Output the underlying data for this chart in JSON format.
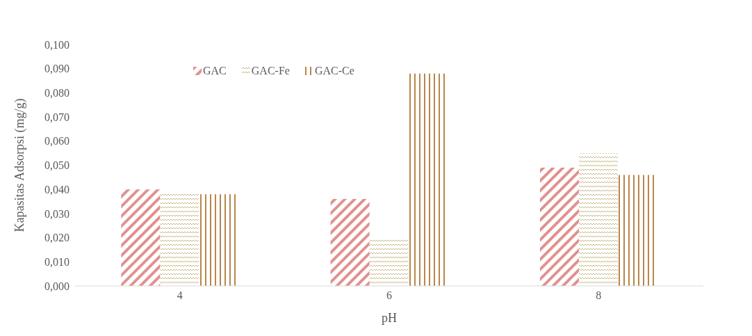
{
  "chart_data": {
    "type": "bar",
    "xlabel": "pH",
    "ylabel": "Kapasitas Adsorpsi (mg/g)",
    "categories": [
      "4",
      "6",
      "8"
    ],
    "series": [
      {
        "name": "GAC",
        "color": "#e0918f",
        "values": [
          0.04,
          0.036,
          0.049
        ]
      },
      {
        "name": "GAC-Fe",
        "color": "#c8b98a",
        "values": [
          0.039,
          0.019,
          0.055
        ]
      },
      {
        "name": "GAC-Ce",
        "color": "#b8864a",
        "values": [
          0.038,
          0.088,
          0.046
        ]
      }
    ],
    "ylim": [
      0,
      0.1
    ],
    "yticks": [
      {
        "value": 0,
        "label": "0,000"
      },
      {
        "value": 0.01,
        "label": "0,010"
      },
      {
        "value": 0.02,
        "label": "0,020"
      },
      {
        "value": 0.03,
        "label": "0,030"
      },
      {
        "value": 0.04,
        "label": "0,040"
      },
      {
        "value": 0.05,
        "label": "0,050"
      },
      {
        "value": 0.06,
        "label": "0,060"
      },
      {
        "value": 0.07,
        "label": "0,070"
      },
      {
        "value": 0.08,
        "label": "0,080"
      },
      {
        "value": 0.09,
        "label": "0,090"
      },
      {
        "value": 0.1,
        "label": "0,100"
      }
    ],
    "grid": false,
    "legend": "top left"
  }
}
